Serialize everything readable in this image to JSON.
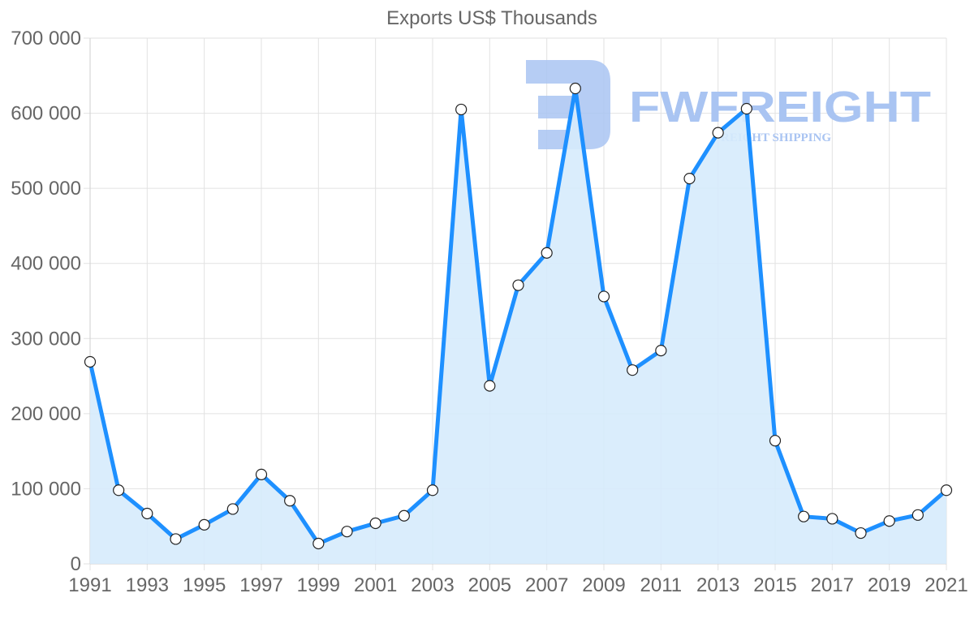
{
  "chart_data": {
    "type": "line",
    "title": "Exports US$ Thousands",
    "xlabel": "",
    "ylabel": "",
    "x": [
      1991,
      1992,
      1993,
      1994,
      1995,
      1996,
      1997,
      1998,
      1999,
      2000,
      2001,
      2002,
      2003,
      2004,
      2005,
      2006,
      2007,
      2008,
      2009,
      2010,
      2011,
      2012,
      2013,
      2014,
      2015,
      2016,
      2017,
      2018,
      2019,
      2020,
      2021
    ],
    "series": [
      {
        "name": "Exports US$ Thousands",
        "values": [
          269000,
          98000,
          67000,
          33000,
          52000,
          73000,
          119000,
          84000,
          27000,
          43000,
          54000,
          64000,
          98000,
          605000,
          237000,
          371000,
          414000,
          633000,
          356000,
          258000,
          284000,
          513000,
          574000,
          606000,
          164000,
          63000,
          60000,
          41000,
          57000,
          65000,
          98000
        ],
        "color": "#1e90ff",
        "fill": "#d6ebfc"
      }
    ],
    "ylim": [
      0,
      700000
    ],
    "yticks": [
      0,
      100000,
      200000,
      300000,
      400000,
      500000,
      600000,
      700000
    ],
    "ytick_labels": [
      "0",
      "100 000",
      "200 000",
      "300 000",
      "400 000",
      "500 000",
      "600 000",
      "700 000"
    ],
    "xtick_labels": [
      "1991",
      "1993",
      "1995",
      "1997",
      "1999",
      "2001",
      "2003",
      "2005",
      "2007",
      "2009",
      "2011",
      "2013",
      "2015",
      "2017",
      "2019",
      "2021"
    ],
    "grid": true,
    "legend": "none",
    "area_fill": true
  },
  "watermark": {
    "brand": "FWFREIGHT",
    "tagline": "REIGHT SHIPPING",
    "color": "#a9c4f2"
  }
}
